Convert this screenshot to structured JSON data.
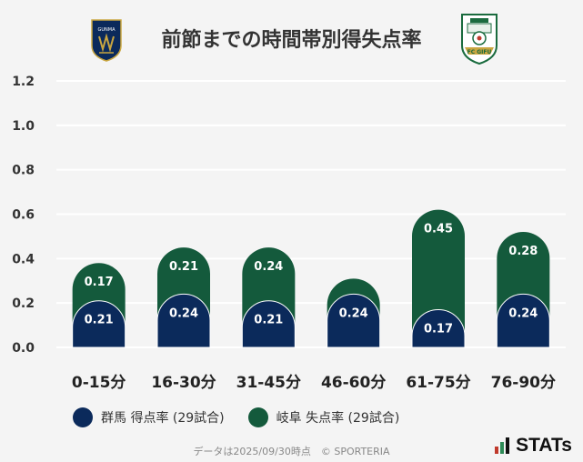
{
  "header": {
    "title": "前節までの時間帯別得失点率",
    "home_logo_text": "GUNMA",
    "away_logo_text": "FC GIFU"
  },
  "colors": {
    "home": "#0b2a5b",
    "away": "#145a3c",
    "background": "#f4f4f4"
  },
  "chart_data": {
    "type": "bar",
    "stacked": true,
    "categories": [
      "0-15分",
      "16-30分",
      "31-45分",
      "46-60分",
      "61-75分",
      "76-90分"
    ],
    "series": [
      {
        "name": "群馬 得点率 (29試合)",
        "values": [
          0.21,
          0.24,
          0.21,
          0.24,
          0.17,
          0.24
        ]
      },
      {
        "name": "岐阜 失点率 (29試合)",
        "values": [
          0.17,
          0.21,
          0.24,
          0.07,
          0.45,
          0.28
        ],
        "labels": [
          "0.17",
          "0.21",
          "0.24",
          "",
          "0.45",
          "0.28"
        ]
      }
    ],
    "ylim": [
      0,
      1.2
    ],
    "yticks": [
      "0.0",
      "0.2",
      "0.4",
      "0.6",
      "0.8",
      "1.0",
      "1.2"
    ],
    "grid": true,
    "legend_position": "bottom"
  },
  "footer": {
    "note": "データは2025/09/30時点　© SPORTERIA",
    "brand": "STATs"
  }
}
